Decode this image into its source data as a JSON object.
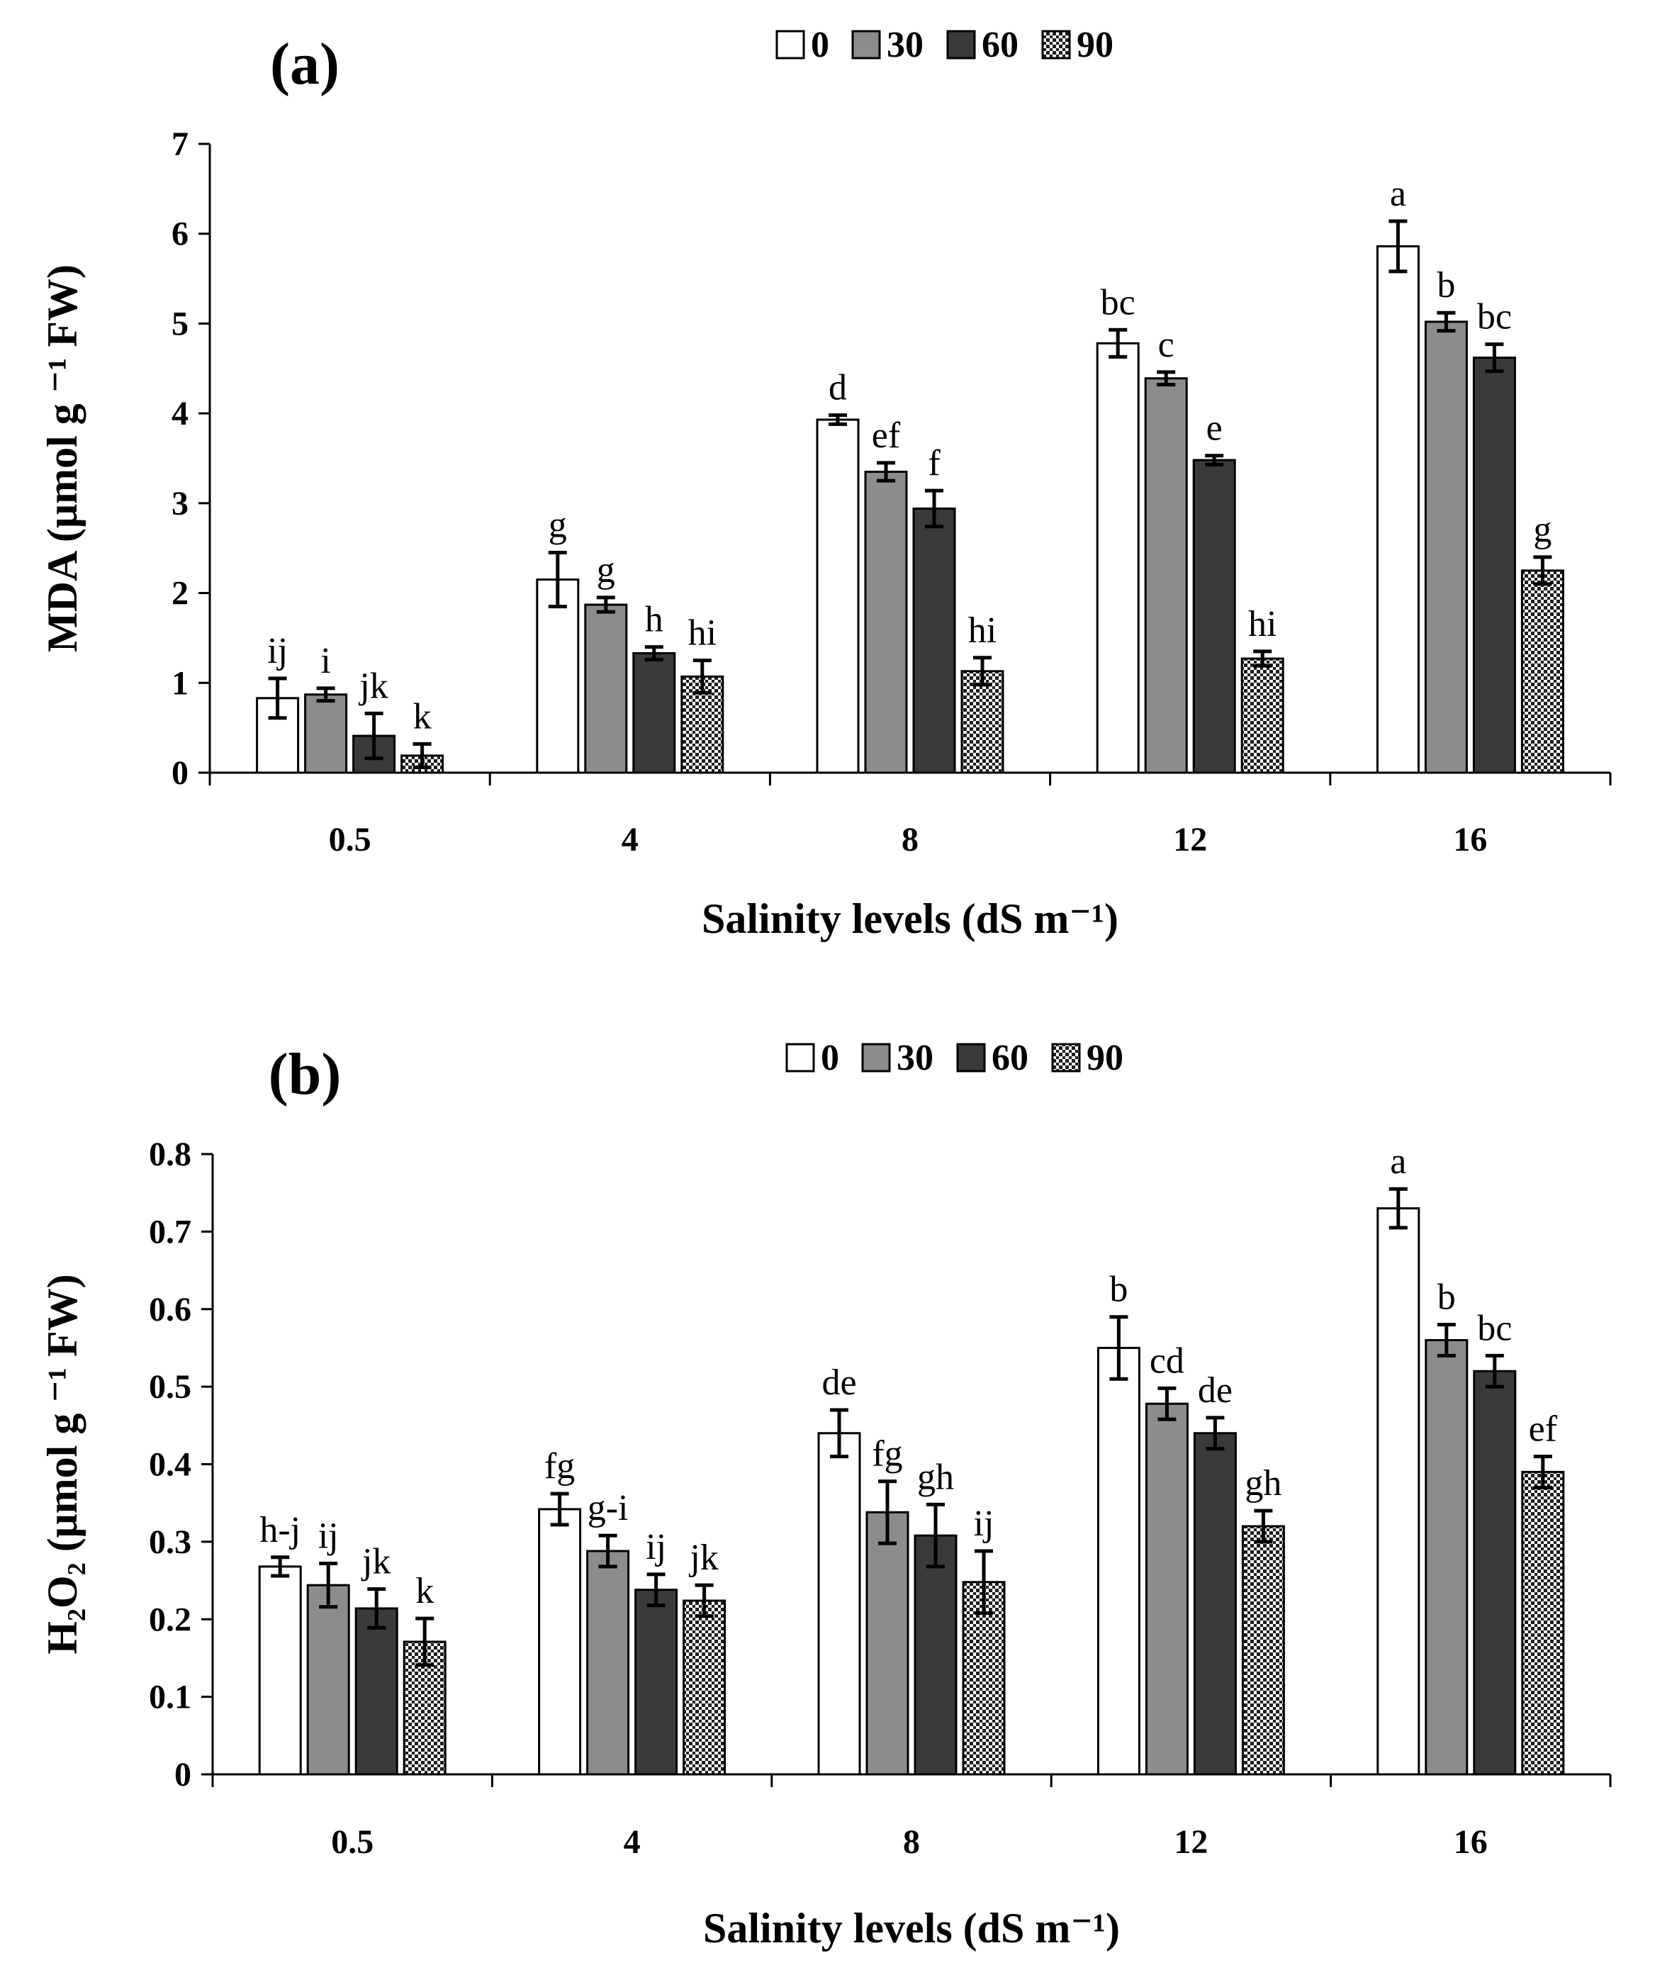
{
  "chart_data": [
    {
      "type": "bar",
      "panel": "(a)",
      "title": "",
      "categories": [
        "0.5",
        "4",
        "8",
        "12",
        "16"
      ],
      "series": [
        {
          "name": "0",
          "pattern": "white",
          "values": [
            0.83,
            2.15,
            3.93,
            4.78,
            5.86
          ],
          "errors": [
            0.22,
            0.3,
            0.05,
            0.15,
            0.28
          ],
          "letters": [
            "ij",
            "g",
            "d",
            "bc",
            "a"
          ]
        },
        {
          "name": "30",
          "pattern": "gray",
          "values": [
            0.87,
            1.87,
            3.35,
            4.39,
            5.02
          ],
          "errors": [
            0.07,
            0.08,
            0.1,
            0.07,
            0.1
          ],
          "letters": [
            "i",
            "g",
            "ef",
            "c",
            "b"
          ]
        },
        {
          "name": "60",
          "pattern": "dark",
          "values": [
            0.41,
            1.33,
            2.94,
            3.48,
            4.62
          ],
          "errors": [
            0.25,
            0.07,
            0.2,
            0.05,
            0.15
          ],
          "letters": [
            "jk",
            "h",
            "f",
            "e",
            "bc"
          ]
        },
        {
          "name": "90",
          "pattern": "dotted",
          "values": [
            0.19,
            1.07,
            1.13,
            1.27,
            2.25
          ],
          "errors": [
            0.13,
            0.18,
            0.15,
            0.08,
            0.15
          ],
          "letters": [
            "k",
            "hi",
            "hi",
            "hi",
            "g"
          ]
        }
      ],
      "xlabel": "Salinity levels (dS m⁻¹)",
      "ylabel": "MDA (μmol g ⁻¹ FW)",
      "ylim": [
        0,
        7
      ],
      "yticks": [
        "0",
        "1",
        "2",
        "3",
        "4",
        "5",
        "6",
        "7"
      ],
      "legend": [
        "0",
        "30",
        "60",
        "90"
      ],
      "legend_position": "top-right"
    },
    {
      "type": "bar",
      "panel": "(b)",
      "title": "",
      "categories": [
        "0.5",
        "4",
        "8",
        "12",
        "16"
      ],
      "series": [
        {
          "name": "0",
          "pattern": "white",
          "values": [
            0.268,
            0.342,
            0.44,
            0.55,
            0.73
          ],
          "errors": [
            0.012,
            0.02,
            0.03,
            0.04,
            0.025
          ],
          "letters": [
            "h-j",
            "fg",
            "de",
            "b",
            "a"
          ]
        },
        {
          "name": "30",
          "pattern": "gray",
          "values": [
            0.244,
            0.288,
            0.338,
            0.478,
            0.56
          ],
          "errors": [
            0.028,
            0.02,
            0.04,
            0.02,
            0.02
          ],
          "letters": [
            "ij",
            "g-i",
            "fg",
            "cd",
            "b"
          ]
        },
        {
          "name": "60",
          "pattern": "dark",
          "values": [
            0.214,
            0.238,
            0.308,
            0.44,
            0.52
          ],
          "errors": [
            0.025,
            0.02,
            0.04,
            0.02,
            0.02
          ],
          "letters": [
            "jk",
            "ij",
            "gh",
            "de",
            "bc"
          ]
        },
        {
          "name": "90",
          "pattern": "dotted",
          "values": [
            0.171,
            0.224,
            0.248,
            0.32,
            0.39
          ],
          "errors": [
            0.03,
            0.02,
            0.04,
            0.02,
            0.02
          ],
          "letters": [
            "k",
            "jk",
            "ij",
            "gh",
            "ef"
          ]
        }
      ],
      "xlabel": "Salinity levels (dS m⁻¹)",
      "ylabel": "H₂O₂ (μmol g ⁻¹ FW)",
      "ylim": [
        0,
        0.8
      ],
      "yticks": [
        "0",
        "0.1",
        "0.2",
        "0.3",
        "0.4",
        "0.5",
        "0.6",
        "0.7",
        "0.8"
      ],
      "legend": [
        "0",
        "30",
        "60",
        "90"
      ],
      "legend_position": "top-right"
    }
  ],
  "colors": {
    "white": "#ffffff",
    "gray": "#8c8c8c",
    "dark": "#3a3a3a",
    "dotted_bg": "#ffffff",
    "dotted_fg": "#222222",
    "ink": "#000000"
  }
}
